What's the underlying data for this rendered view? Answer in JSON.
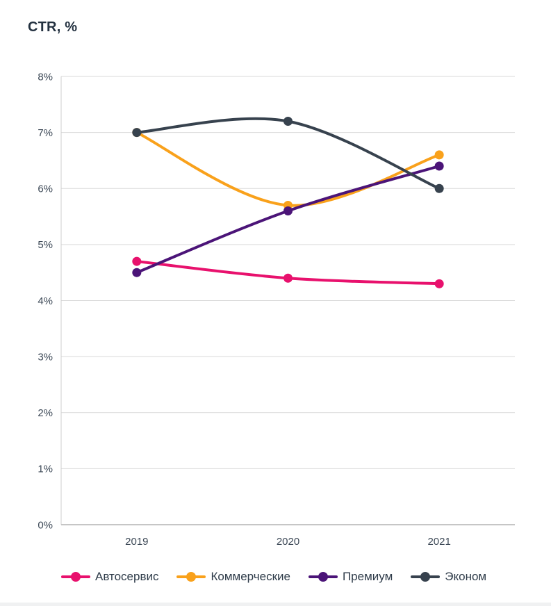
{
  "page": {
    "title": "CTR, %"
  },
  "chart_data": {
    "type": "line",
    "title": "CTR, %",
    "categories": [
      "2019",
      "2020",
      "2021"
    ],
    "series": [
      {
        "name": "Автосервис",
        "color": "#e8116d",
        "values": [
          4.7,
          4.4,
          4.3
        ]
      },
      {
        "name": "Коммерческие",
        "color": "#f9a11b",
        "values": [
          7.0,
          5.7,
          6.6
        ]
      },
      {
        "name": "Премиум",
        "color": "#4b1478",
        "values": [
          4.5,
          5.6,
          6.4
        ]
      },
      {
        "name": "Эконом",
        "color": "#37424e",
        "values": [
          7.0,
          7.2,
          6.0
        ]
      }
    ],
    "xlabel": "",
    "ylabel": "CTR, %",
    "ylim": [
      0,
      8
    ],
    "ytick_step": 1,
    "y_tick_labels": [
      "0%",
      "1%",
      "2%",
      "3%",
      "4%",
      "5%",
      "6%",
      "7%",
      "8%"
    ],
    "grid": true,
    "line_style": "smooth",
    "markers": "circle",
    "legend_position": "bottom"
  },
  "colors": {
    "title_text": "#233140",
    "tick_text": "#3c4856",
    "legend_text": "#2e3b49",
    "gridline": "#d9d9d9",
    "plot_border": "#cfcfcf",
    "x_axis_line": "#c6c6c6",
    "bottom_bar": "#f0f1f2"
  }
}
